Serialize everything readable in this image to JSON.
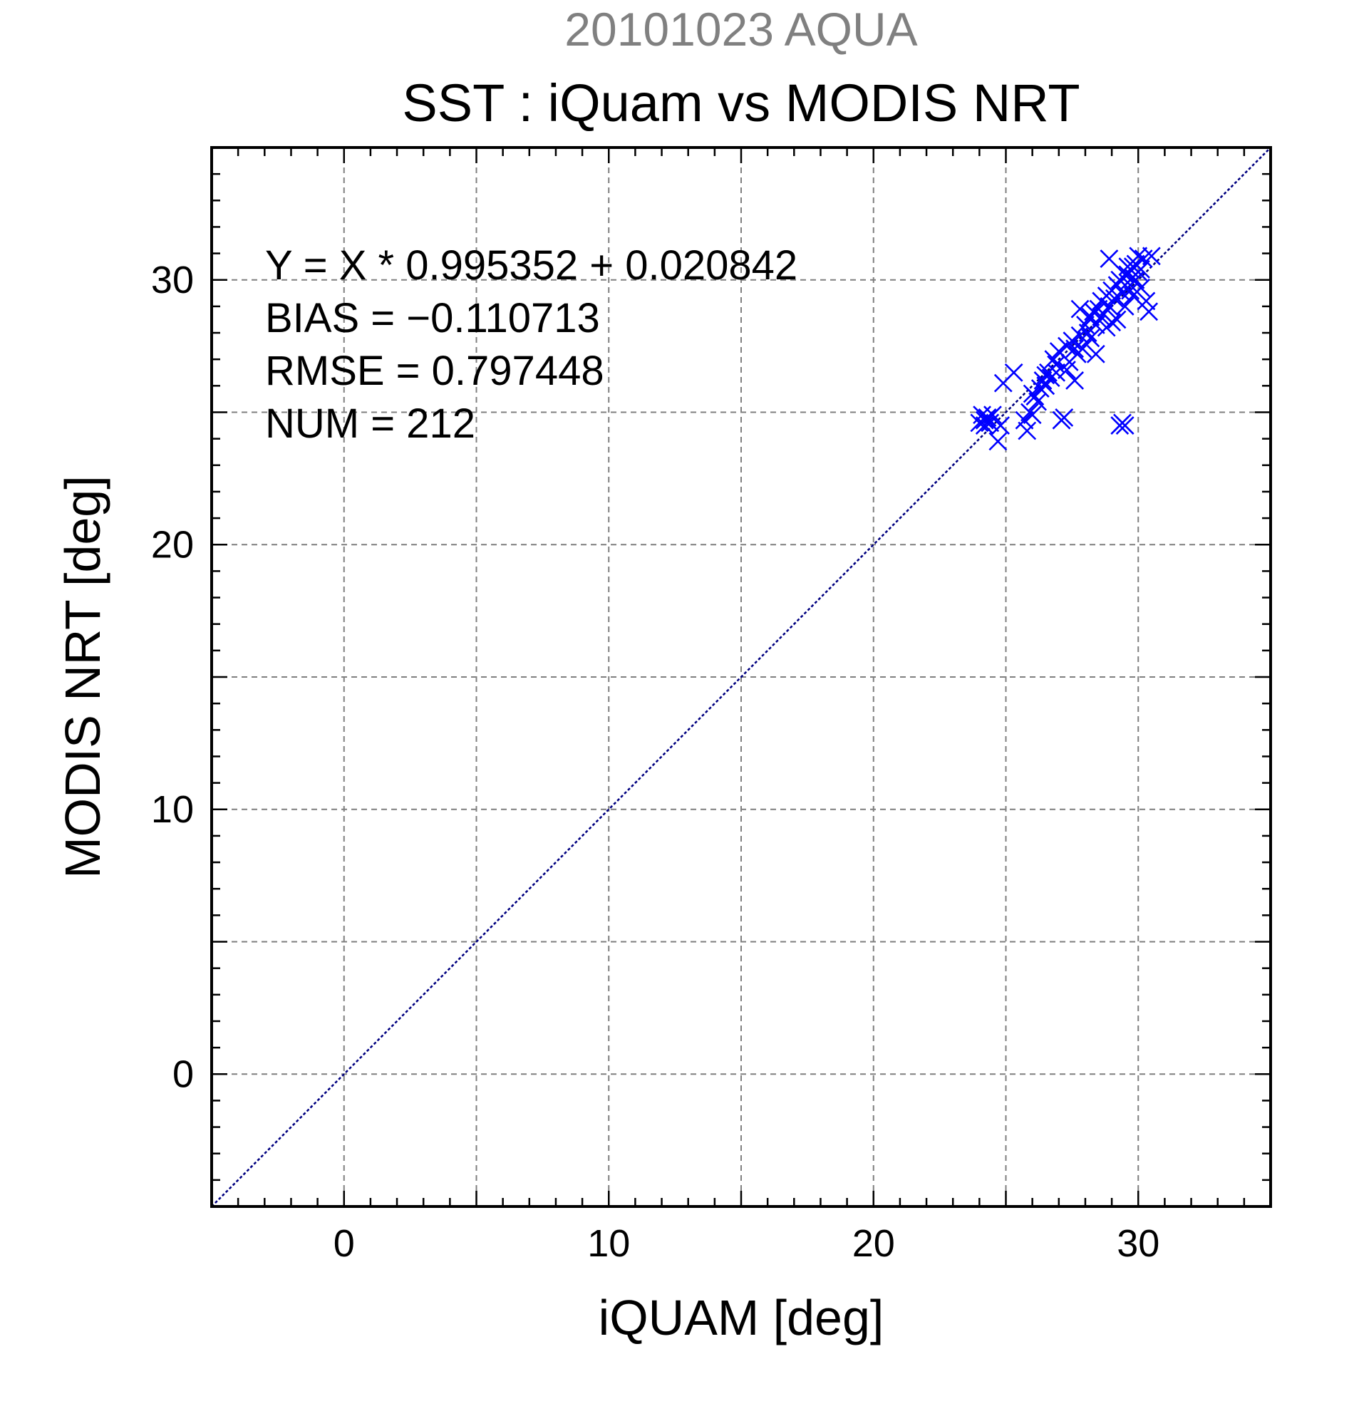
{
  "chart_data": {
    "type": "scatter",
    "title_top": "20101023 AQUA",
    "title": "SST : iQuam vs MODIS NRT",
    "xlabel": "iQUAM [deg]",
    "ylabel": "MODIS NRT [deg]",
    "xlim": [
      -5,
      35
    ],
    "ylim": [
      -5,
      35
    ],
    "x_ticks": [
      0,
      10,
      20,
      30
    ],
    "y_ticks": [
      0,
      10,
      20,
      30
    ],
    "x_tick_labels": [
      "0",
      "10",
      "20",
      "30"
    ],
    "y_tick_labels": [
      "0",
      "10",
      "20",
      "30"
    ],
    "grid": true,
    "reference_line": {
      "slope": 1,
      "intercept": 0,
      "color": "#000080",
      "style": "dotted"
    },
    "stats": {
      "fit_line": "Y = X * 0.995352 + 0.020842",
      "bias_line": "BIAS = −0.110713",
      "rmse_line": "RMSE = 0.797448",
      "num_line": "NUM = 212"
    },
    "series": [
      {
        "marker": "x",
        "color": "#0000ff",
        "points": [
          [
            24.0,
            24.6
          ],
          [
            24.1,
            24.9
          ],
          [
            24.2,
            24.5
          ],
          [
            24.3,
            24.8
          ],
          [
            24.4,
            24.6
          ],
          [
            24.5,
            24.9
          ],
          [
            24.2,
            24.7
          ],
          [
            24.7,
            23.9
          ],
          [
            24.8,
            24.5
          ],
          [
            24.9,
            26.1
          ],
          [
            25.3,
            26.5
          ],
          [
            25.7,
            24.7
          ],
          [
            25.8,
            24.3
          ],
          [
            25.9,
            25.0
          ],
          [
            26.0,
            24.9
          ],
          [
            26.1,
            25.6
          ],
          [
            26.2,
            25.4
          ],
          [
            26.3,
            25.9
          ],
          [
            26.4,
            26.2
          ],
          [
            26.5,
            26.0
          ],
          [
            26.6,
            26.5
          ],
          [
            26.7,
            26.3
          ],
          [
            26.8,
            27.0
          ],
          [
            26.9,
            26.8
          ],
          [
            27.0,
            27.3
          ],
          [
            27.1,
            24.7
          ],
          [
            27.2,
            24.8
          ],
          [
            27.3,
            27.5
          ],
          [
            27.4,
            26.9
          ],
          [
            27.5,
            27.7
          ],
          [
            27.6,
            26.2
          ],
          [
            27.7,
            27.2
          ],
          [
            27.8,
            27.9
          ],
          [
            27.9,
            27.4
          ],
          [
            28.0,
            28.3
          ],
          [
            28.1,
            28.0
          ],
          [
            28.2,
            28.6
          ],
          [
            28.3,
            28.8
          ],
          [
            28.4,
            28.3
          ],
          [
            28.5,
            28.9
          ],
          [
            28.6,
            29.2
          ],
          [
            28.7,
            28.7
          ],
          [
            28.8,
            29.4
          ],
          [
            28.9,
            29.0
          ],
          [
            29.0,
            29.6
          ],
          [
            29.1,
            29.3
          ],
          [
            29.2,
            29.8
          ],
          [
            29.3,
            30.0
          ],
          [
            29.4,
            29.5
          ],
          [
            29.5,
            30.2
          ],
          [
            29.6,
            29.9
          ],
          [
            29.7,
            30.4
          ],
          [
            29.8,
            30.1
          ],
          [
            29.9,
            30.6
          ],
          [
            30.0,
            30.3
          ],
          [
            30.1,
            29.7
          ],
          [
            30.2,
            30.8
          ],
          [
            30.3,
            29.2
          ],
          [
            30.4,
            28.8
          ],
          [
            30.5,
            30.9
          ],
          [
            29.3,
            24.5
          ],
          [
            29.4,
            24.6
          ],
          [
            29.5,
            24.5
          ],
          [
            28.9,
            30.8
          ],
          [
            28.4,
            27.2
          ],
          [
            27.8,
            28.9
          ],
          [
            29.0,
            28.4
          ],
          [
            29.6,
            30.5
          ],
          [
            29.8,
            29.4
          ],
          [
            30.0,
            30.9
          ],
          [
            29.9,
            30.0
          ],
          [
            29.7,
            29.6
          ],
          [
            29.5,
            29.0
          ],
          [
            29.2,
            28.5
          ],
          [
            28.8,
            28.2
          ],
          [
            28.6,
            28.6
          ],
          [
            28.2,
            27.8
          ],
          [
            27.6,
            27.4
          ],
          [
            27.3,
            26.6
          ],
          [
            26.9,
            26.5
          ],
          [
            26.5,
            26.4
          ],
          [
            26.0,
            25.7
          ],
          [
            29.6,
            30.2
          ],
          [
            29.8,
            30.5
          ],
          [
            30.1,
            30.4
          ]
        ]
      }
    ]
  }
}
